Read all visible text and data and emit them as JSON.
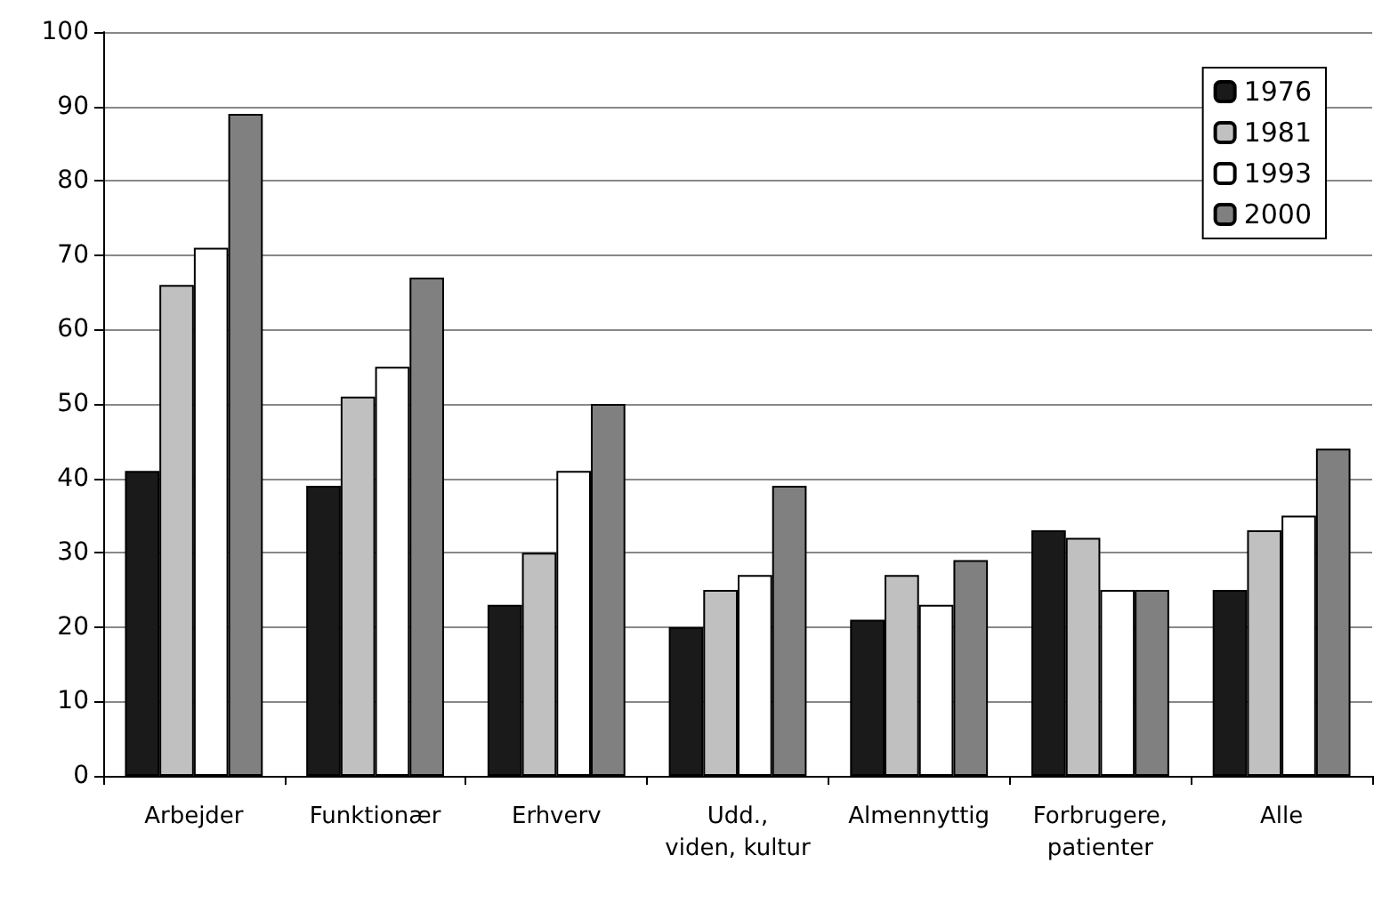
{
  "chart_data": {
    "type": "bar",
    "categories": [
      "Arbejder",
      "Funktionær",
      "Erhverv",
      "Udd.,\nviden, kultur",
      "Almennyttig",
      "Forbrugere,\npatienter",
      "Alle"
    ],
    "series": [
      {
        "name": "1976",
        "color": "#1a1a1a",
        "values": [
          41,
          39,
          23,
          20,
          21,
          33,
          25
        ]
      },
      {
        "name": "1981",
        "color": "#c0c0c0",
        "values": [
          66,
          51,
          30,
          25,
          27,
          32,
          33
        ]
      },
      {
        "name": "1993",
        "color": "#ffffff",
        "values": [
          71,
          55,
          41,
          27,
          23,
          25,
          35
        ]
      },
      {
        "name": "2000",
        "color": "#808080",
        "values": [
          89,
          67,
          50,
          39,
          29,
          25,
          44
        ]
      }
    ],
    "ylim": [
      0,
      100
    ],
    "yticks": [
      0,
      10,
      20,
      30,
      40,
      50,
      60,
      70,
      80,
      90,
      100
    ],
    "grid": "y",
    "legend": "top right"
  }
}
